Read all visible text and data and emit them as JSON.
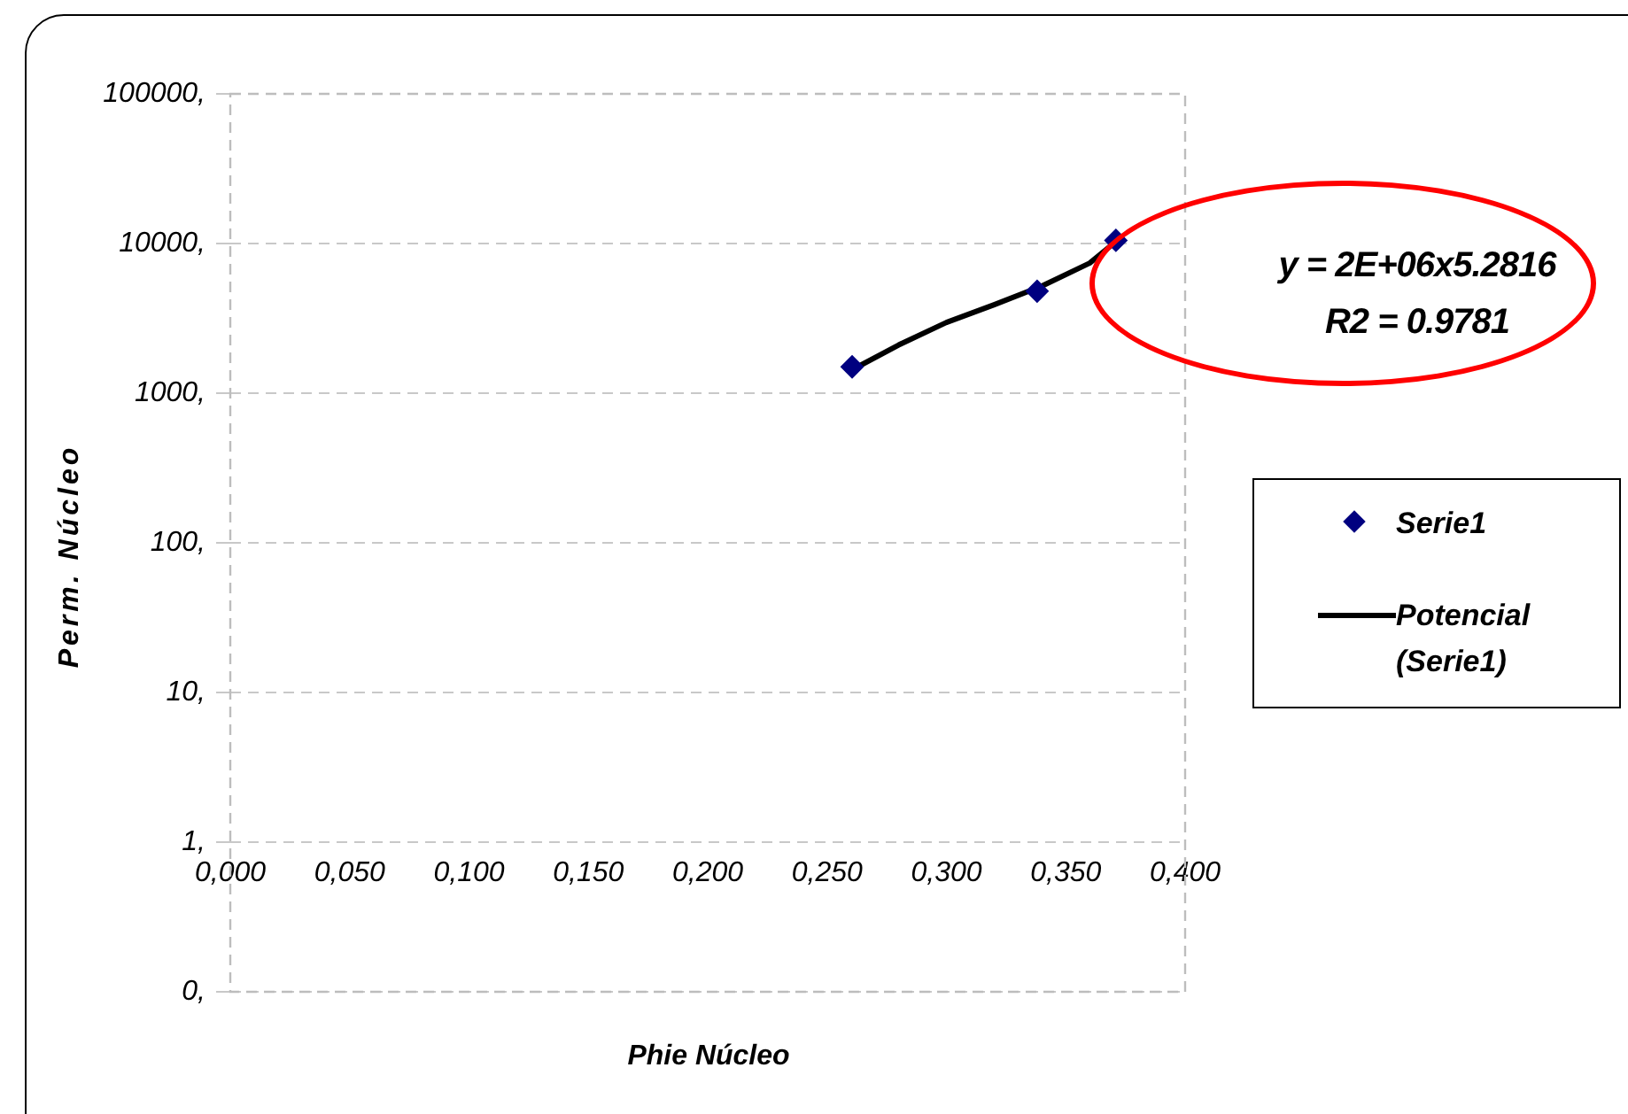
{
  "chart_data": {
    "type": "scatter",
    "xlabel": "Phie Núcleo",
    "ylabel": "Perm. Núcleo",
    "annotations": [
      "y = 2E+06x5.2816",
      "R2 = 0.9781"
    ],
    "series": [
      {
        "name": "Serie1",
        "type": "scatter",
        "color": "#000080",
        "marker": "diamond",
        "x": [
          0.2605,
          0.338,
          0.371
        ],
        "values": [
          1500,
          4800,
          10500
        ]
      },
      {
        "name": "Potencial (Serie1)",
        "type": "line",
        "color": "#000000",
        "marker": "none",
        "line_style": "solid",
        "x": [
          0.26,
          0.28,
          0.3,
          0.32,
          0.34,
          0.36,
          0.37
        ],
        "values": [
          1420,
          2100,
          2970,
          3900,
          5200,
          7400,
          10000
        ]
      }
    ],
    "log": "y",
    "xlim": [
      0,
      0.4
    ],
    "xticks": [
      {
        "value": 0,
        "label": "0,000"
      },
      {
        "value": 0.05,
        "label": "0,050"
      },
      {
        "value": 0.1,
        "label": "0,100"
      },
      {
        "value": 0.15,
        "label": "0,150"
      },
      {
        "value": 0.2,
        "label": "0,200"
      },
      {
        "value": 0.25,
        "label": "0,250"
      },
      {
        "value": 0.3,
        "label": "0,300"
      },
      {
        "value": 0.35,
        "label": "0,350"
      },
      {
        "value": 0.4,
        "label": "0,400"
      }
    ],
    "ylim": [
      0.1,
      100000
    ],
    "yticks": [
      {
        "value": 0.1,
        "label": "0,"
      },
      {
        "value": 1,
        "label": "1,"
      },
      {
        "value": 10,
        "label": "10,"
      },
      {
        "value": 100,
        "label": "100,"
      },
      {
        "value": 1000,
        "label": "1000,"
      },
      {
        "value": 10000,
        "label": "10000,"
      },
      {
        "value": 100000,
        "label": "100000,"
      }
    ],
    "grid": "y",
    "legend": "right"
  }
}
